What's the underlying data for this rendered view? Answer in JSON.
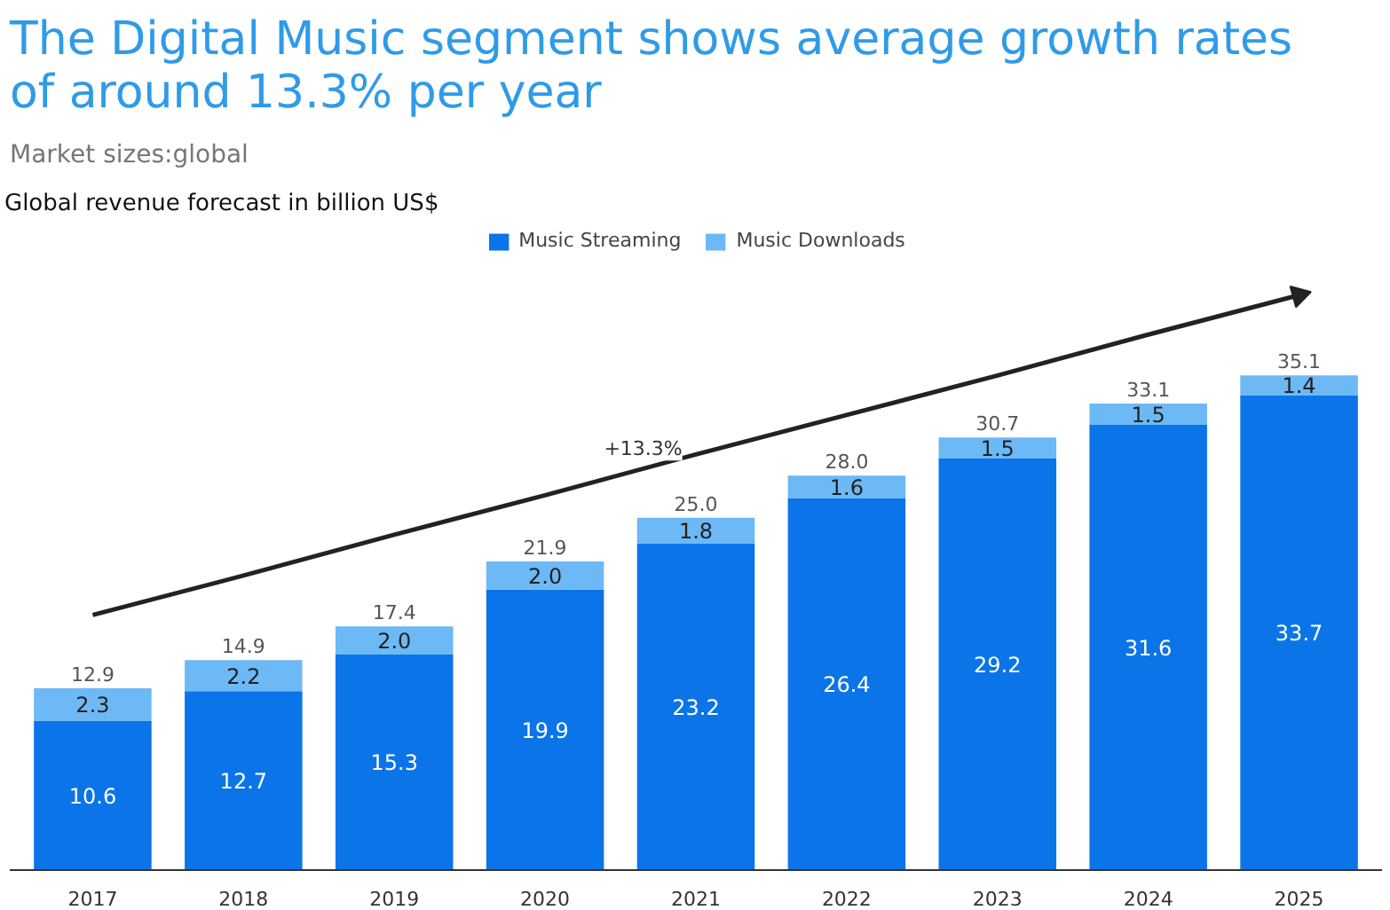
{
  "chart_data": {
    "type": "bar",
    "title": "The Digital Music segment shows average growth rates of around 13.3% per year",
    "subtitle": "Market sizes:global",
    "categories": [
      "2017",
      "2018",
      "2019",
      "2020",
      "2021",
      "2022",
      "2023",
      "2024",
      "2025"
    ],
    "stacked": true,
    "tick_labels": "x",
    "legend": "top",
    "grid": false,
    "series": [
      {
        "name": "Music Streaming",
        "color": "#0b74e8",
        "values": [
          10.6,
          12.7,
          15.3,
          19.9,
          23.2,
          26.4,
          29.2,
          31.6,
          33.7
        ],
        "value_labels": [
          "10.6",
          "12.7",
          "15.3",
          "19.9",
          "23.2",
          "26.4",
          "29.2",
          "31.6",
          "33.7"
        ]
      },
      {
        "name": "Music Downloads",
        "color": "#6db9f6",
        "values": [
          2.3,
          2.2,
          2.0,
          2.0,
          1.8,
          1.6,
          1.5,
          1.5,
          1.4
        ],
        "value_labels": [
          "2.3",
          "2.2",
          "2.0",
          "2.0",
          "1.8",
          "1.6",
          "1.5",
          "1.5",
          "1.4"
        ]
      },
      {
        "type": "line",
        "color": "#222222",
        "marker": "none",
        "values": [
          18.1,
          20.9,
          23.8,
          26.6,
          29.5,
          32.3,
          35.1,
          38.0,
          40.8
        ]
      }
    ],
    "totals": [
      "12.9",
      "14.9",
      "17.4",
      "21.9",
      "25.0",
      "28.0",
      "30.7",
      "33.1",
      "35.1"
    ],
    "annotations": [
      "Global revenue forecast in billion US$",
      "+13.3%"
    ]
  }
}
